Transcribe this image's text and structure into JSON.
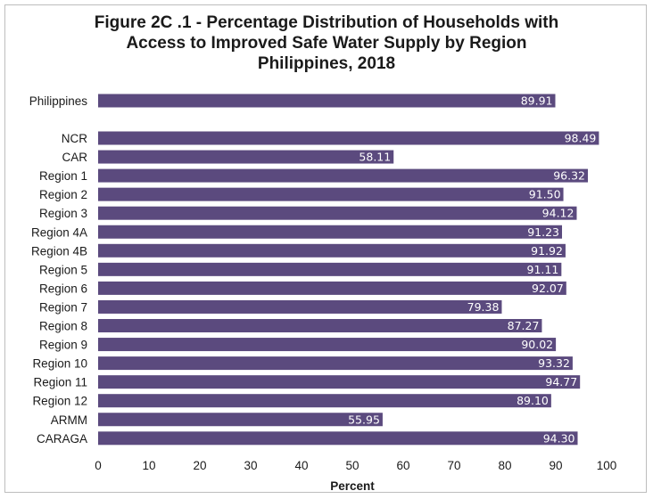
{
  "chart_data": {
    "type": "bar",
    "orientation": "horizontal",
    "title_lines": [
      "Figure 2C .1 - Percentage Distribution of Households with",
      "Access to Improved Safe Water Supply by Region",
      "Philippines, 2018"
    ],
    "categories": [
      "Philippines",
      "NCR",
      "CAR",
      "Region 1",
      "Region 2",
      "Region 3",
      "Region 4A",
      "Region 4B",
      "Region 5",
      "Region 6",
      "Region 7",
      "Region 8",
      "Region 9",
      "Region 10",
      "Region 11",
      "Region 12",
      "ARMM",
      "CARAGA"
    ],
    "values": [
      89.91,
      98.49,
      58.11,
      96.32,
      91.5,
      94.12,
      91.23,
      91.92,
      91.11,
      92.07,
      79.38,
      87.27,
      90.02,
      93.32,
      94.77,
      89.1,
      55.95,
      94.3
    ],
    "value_labels": [
      "89.91",
      "98.49",
      "58.11",
      "96.32",
      "91.50",
      "94.12",
      "91.23",
      "91.92",
      "91.11",
      "92.07",
      "79.38",
      "87.27",
      "90.02",
      "93.32",
      "94.77",
      "89.10",
      "55.95",
      "94.30"
    ],
    "xlabel": "Percent",
    "ylabel": "",
    "xlim": [
      0,
      100
    ],
    "xticks": [
      "0",
      "10",
      "20",
      "30",
      "40",
      "50",
      "60",
      "70",
      "80",
      "90",
      "100"
    ],
    "grid": false,
    "legend": "none",
    "bar_color": "#5b4a7e",
    "value_label_color": "#ffffff"
  }
}
